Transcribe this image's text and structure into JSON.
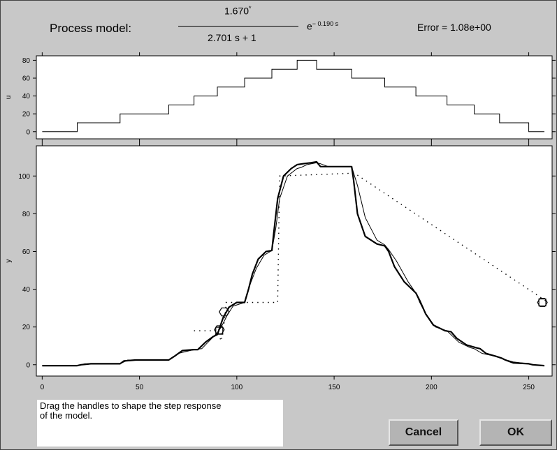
{
  "header": {
    "model_label": "Process model:",
    "gain": "1.670",
    "gain_mark": "*",
    "denominator": "2.701 s + 1",
    "exp_base": "e",
    "exp_power": "− 0.190 s",
    "error_text": "Error = 1.08e+00"
  },
  "help_text": "Drag the handles to shape the step response of the model.",
  "buttons": {
    "cancel": "Cancel",
    "ok": "OK"
  },
  "chart_data": [
    {
      "type": "line",
      "ylabel": "u",
      "xlim": [
        -3,
        262
      ],
      "ylim": [
        -8,
        85
      ],
      "yticks": [
        0,
        20,
        40,
        60,
        80
      ],
      "series": [
        {
          "style": "step",
          "x": [
            0,
            18,
            18,
            40,
            40,
            65,
            65,
            78,
            78,
            90,
            90,
            104,
            104,
            118,
            118,
            131,
            131,
            141,
            141,
            159,
            159,
            176,
            176,
            192,
            192,
            208,
            208,
            222,
            222,
            235,
            235,
            250,
            250,
            258
          ],
          "y": [
            0,
            0,
            10,
            10,
            20,
            20,
            30,
            30,
            40,
            40,
            50,
            50,
            60,
            60,
            70,
            70,
            80,
            80,
            70,
            70,
            60,
            60,
            50,
            50,
            40,
            40,
            30,
            30,
            20,
            20,
            10,
            10,
            0,
            0
          ]
        }
      ]
    },
    {
      "type": "line",
      "ylabel": "y",
      "xlim": [
        -3,
        262
      ],
      "ylim": [
        -6,
        116
      ],
      "xticks": [
        0,
        50,
        100,
        150,
        200,
        250
      ],
      "yticks": [
        0,
        20,
        40,
        60,
        80,
        100
      ],
      "series": [
        {
          "style": "measured",
          "x": [
            0,
            18,
            20,
            25,
            40,
            42,
            48,
            65,
            68,
            72,
            78,
            80,
            84,
            88,
            90,
            93,
            96,
            100,
            104,
            106,
            108,
            111,
            115,
            118,
            119,
            121,
            124,
            128,
            131,
            134,
            138,
            141,
            143,
            147,
            153,
            159,
            160,
            162,
            166,
            172,
            176,
            178,
            181,
            186,
            192,
            194,
            197,
            201,
            207,
            210,
            213,
            218,
            223,
            225,
            228,
            233,
            236,
            238,
            242,
            250,
            252,
            258
          ],
          "y": [
            -0.5,
            -0.5,
            0,
            0.5,
            0.5,
            2,
            2.5,
            2.5,
            4.5,
            7.5,
            8,
            8,
            12,
            15,
            16,
            25,
            30.5,
            33,
            33,
            40,
            48,
            56,
            60,
            60.5,
            70,
            88,
            100,
            104,
            106,
            106.5,
            107,
            107.5,
            105,
            105,
            105,
            105,
            98,
            80,
            68,
            64,
            63,
            60,
            52,
            44,
            38,
            34,
            27,
            21,
            18,
            17.5,
            14,
            10.5,
            9,
            8.5,
            6,
            4.5,
            3.5,
            2.5,
            1,
            0.5,
            0,
            -0.5
          ]
        },
        {
          "style": "model",
          "x": [
            0,
            18,
            22,
            40,
            44,
            65,
            70,
            78,
            82,
            90,
            92,
            95,
            98,
            104,
            107,
            110,
            114,
            118,
            120,
            122,
            126,
            131,
            133,
            136,
            141,
            143,
            147,
            159,
            162,
            166,
            172,
            176,
            178,
            182,
            188,
            192,
            194,
            197,
            202,
            208,
            210,
            214,
            220,
            222,
            226,
            235,
            237,
            242,
            250,
            253,
            258
          ],
          "y": [
            -0.5,
            -0.5,
            0.5,
            0.5,
            2.5,
            2.5,
            6,
            8,
            8.5,
            17,
            20,
            26,
            31,
            33,
            43,
            51,
            58,
            60.5,
            72,
            88,
            100,
            104,
            104.5,
            106,
            107,
            106.5,
            105,
            105,
            95,
            78,
            66,
            63.5,
            61,
            55,
            44,
            38,
            33,
            27,
            20,
            18,
            16,
            12,
            9,
            8.5,
            6,
            4,
            3,
            1.5,
            0.5,
            0,
            -0.5
          ]
        },
        {
          "style": "dotted",
          "x": [
            78,
            90,
            91,
            92,
            93,
            94,
            94.5,
            121,
            122,
            160,
            160.5,
            260
          ],
          "y": [
            18,
            18,
            15,
            12.5,
            19,
            26,
            33,
            33,
            100,
            101.5,
            101.5,
            33
          ]
        }
      ],
      "handles": [
        {
          "shape": "square",
          "x": 91,
          "y": 18
        },
        {
          "shape": "hexagon",
          "x": 91,
          "y": 18.5
        },
        {
          "shape": "hexagon",
          "x": 93.5,
          "y": 28
        },
        {
          "shape": "square",
          "x": 257,
          "y": 33
        },
        {
          "shape": "hexagon",
          "x": 257,
          "y": 33
        }
      ]
    }
  ]
}
